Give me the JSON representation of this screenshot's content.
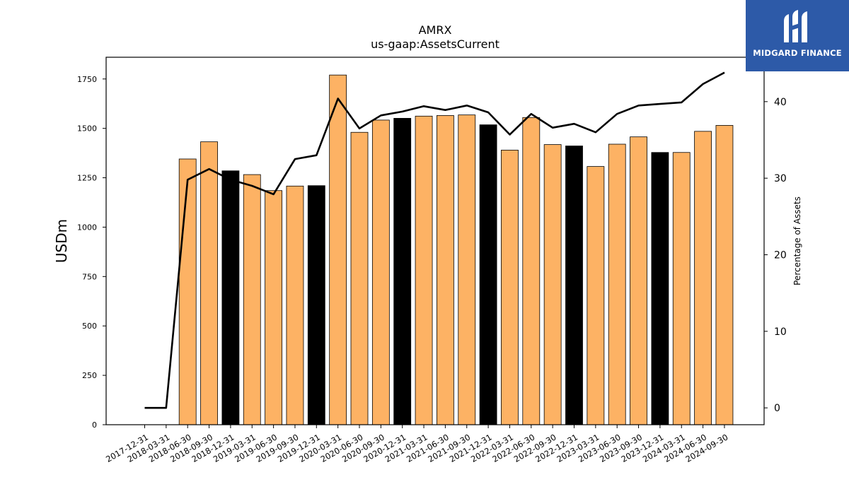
{
  "brand": {
    "name": "MIDGARD FINANCE",
    "logo_icon": "midgard-logo-icon",
    "color": "#2d5aa8"
  },
  "chart_data": {
    "type": "bar",
    "title": "AMRX",
    "subtitle": "us-gaap:AssetsCurrent",
    "ylabel": "USDm",
    "y2label": "Percentage of Assets",
    "ylim": [
      0,
      1860
    ],
    "y2lim": [
      -2.2,
      45.8
    ],
    "yticks": [
      0,
      250,
      500,
      750,
      1000,
      1250,
      1500,
      1750
    ],
    "y2ticks": [
      0,
      10,
      20,
      30,
      40
    ],
    "categories": [
      "2017-12-31",
      "2018-03-31",
      "2018-06-30",
      "2018-09-30",
      "2018-12-31",
      "2019-03-31",
      "2019-06-30",
      "2019-09-30",
      "2019-12-31",
      "2020-03-31",
      "2020-06-30",
      "2020-09-30",
      "2020-12-31",
      "2021-03-31",
      "2021-06-30",
      "2021-09-30",
      "2021-12-31",
      "2022-03-31",
      "2022-06-30",
      "2022-09-30",
      "2022-12-31",
      "2023-03-31",
      "2023-06-30",
      "2023-09-30",
      "2023-12-31",
      "2024-03-31",
      "2024-06-30",
      "2024-09-30"
    ],
    "series": [
      {
        "type": "bar",
        "axis": "left",
        "values": [
          null,
          null,
          1345,
          1432,
          1285,
          1266,
          1185,
          1208,
          1210,
          1770,
          1480,
          1542,
          1551,
          1562,
          1565,
          1568,
          1518,
          1390,
          1555,
          1418,
          1411,
          1307,
          1420,
          1457,
          1378,
          1378,
          1485,
          1515
        ]
      },
      {
        "type": "line",
        "axis": "right",
        "color": "#000000",
        "values": [
          0,
          0,
          29.8,
          31.2,
          29.8,
          29.0,
          27.9,
          32.5,
          33.0,
          40.4,
          36.5,
          38.2,
          38.7,
          39.4,
          38.9,
          39.5,
          38.6,
          35.7,
          38.4,
          36.6,
          37.1,
          36.0,
          38.4,
          39.5,
          39.7,
          39.9,
          42.3,
          43.8
        ]
      }
    ],
    "bar_colors": {
      "default": "#fdb264",
      "year_end": "#000000"
    },
    "year_end_indices": [
      4,
      8,
      12,
      16,
      20,
      24
    ],
    "grid": false,
    "legend": "none"
  }
}
